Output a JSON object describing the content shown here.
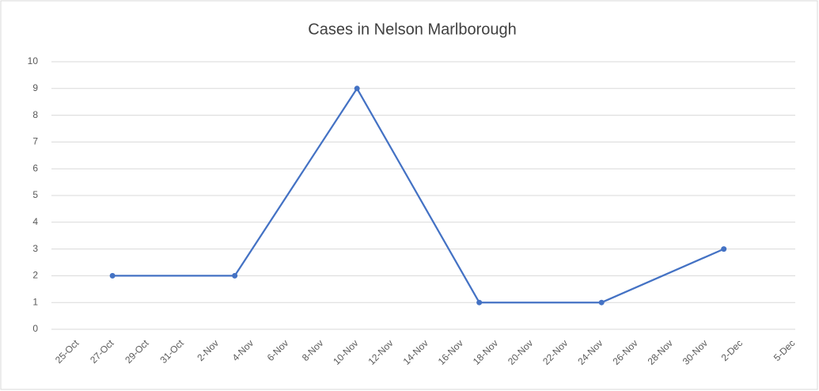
{
  "chart_data": {
    "type": "line",
    "title": "Cases in Nelson Marlborough",
    "categories": [
      "25-Oct",
      null,
      "27-Oct",
      null,
      "29-Oct",
      null,
      "31-Oct",
      null,
      "2-Nov",
      null,
      "4-Nov",
      null,
      "6-Nov",
      null,
      "8-Nov",
      null,
      "10-Nov",
      null,
      "12-Nov",
      null,
      "14-Nov",
      null,
      "16-Nov",
      null,
      "18-Nov",
      null,
      "20-Nov",
      null,
      "22-Nov",
      null,
      "24-Nov",
      null,
      "26-Nov",
      null,
      "28-Nov",
      null,
      "30-Nov",
      null,
      "2-Dec",
      null,
      null,
      "5-Dec"
    ],
    "series": [
      {
        "name": "Cases",
        "color": "#4472c4",
        "values": [
          null,
          null,
          2,
          null,
          null,
          null,
          null,
          null,
          null,
          2,
          null,
          null,
          null,
          null,
          null,
          null,
          9,
          null,
          null,
          null,
          null,
          null,
          null,
          1,
          null,
          null,
          null,
          null,
          null,
          null,
          1,
          null,
          null,
          null,
          null,
          null,
          null,
          3,
          null,
          null,
          null,
          null
        ]
      }
    ],
    "ylim": [
      0,
      10
    ],
    "yticks": [
      0,
      1,
      2,
      3,
      4,
      5,
      6,
      7,
      8,
      9,
      10
    ],
    "grid": true
  }
}
